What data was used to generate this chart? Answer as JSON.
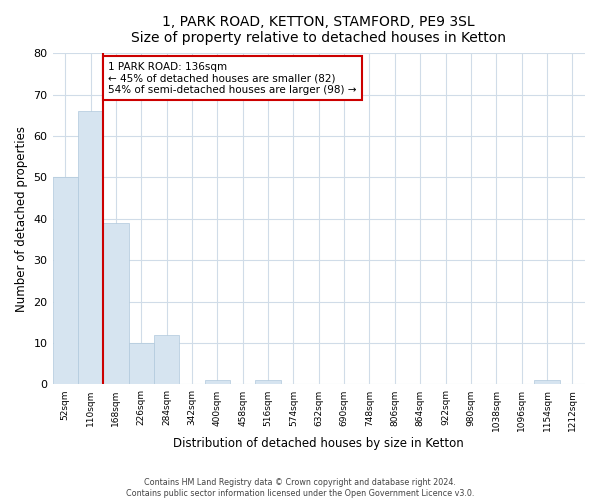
{
  "title": "1, PARK ROAD, KETTON, STAMFORD, PE9 3SL",
  "subtitle": "Size of property relative to detached houses in Ketton",
  "xlabel": "Distribution of detached houses by size in Ketton",
  "ylabel": "Number of detached properties",
  "footnote1": "Contains HM Land Registry data © Crown copyright and database right 2024.",
  "footnote2": "Contains public sector information licensed under the Open Government Licence v3.0.",
  "bar_labels": [
    "52sqm",
    "110sqm",
    "168sqm",
    "226sqm",
    "284sqm",
    "342sqm",
    "400sqm",
    "458sqm",
    "516sqm",
    "574sqm",
    "632sqm",
    "690sqm",
    "748sqm",
    "806sqm",
    "864sqm",
    "922sqm",
    "980sqm",
    "1038sqm",
    "1096sqm",
    "1154sqm",
    "1212sqm"
  ],
  "bar_values": [
    50,
    66,
    39,
    10,
    12,
    0,
    1,
    0,
    1,
    0,
    0,
    0,
    0,
    0,
    0,
    0,
    0,
    0,
    0,
    1,
    0
  ],
  "bar_color": "#d6e4f0",
  "bar_edge_color": "#b0c8dc",
  "vline_x": 2.0,
  "vline_color": "#cc0000",
  "annotation_title": "1 PARK ROAD: 136sqm",
  "annotation_line1": "← 45% of detached houses are smaller (82)",
  "annotation_line2": "54% of semi-detached houses are larger (98) →",
  "annotation_box_color": "#cc0000",
  "ylim": [
    0,
    80
  ],
  "yticks": [
    0,
    10,
    20,
    30,
    40,
    50,
    60,
    70,
    80
  ],
  "grid_color": "#d0dce8",
  "bg_color": "#ffffff",
  "plot_bg_color": "#ffffff"
}
